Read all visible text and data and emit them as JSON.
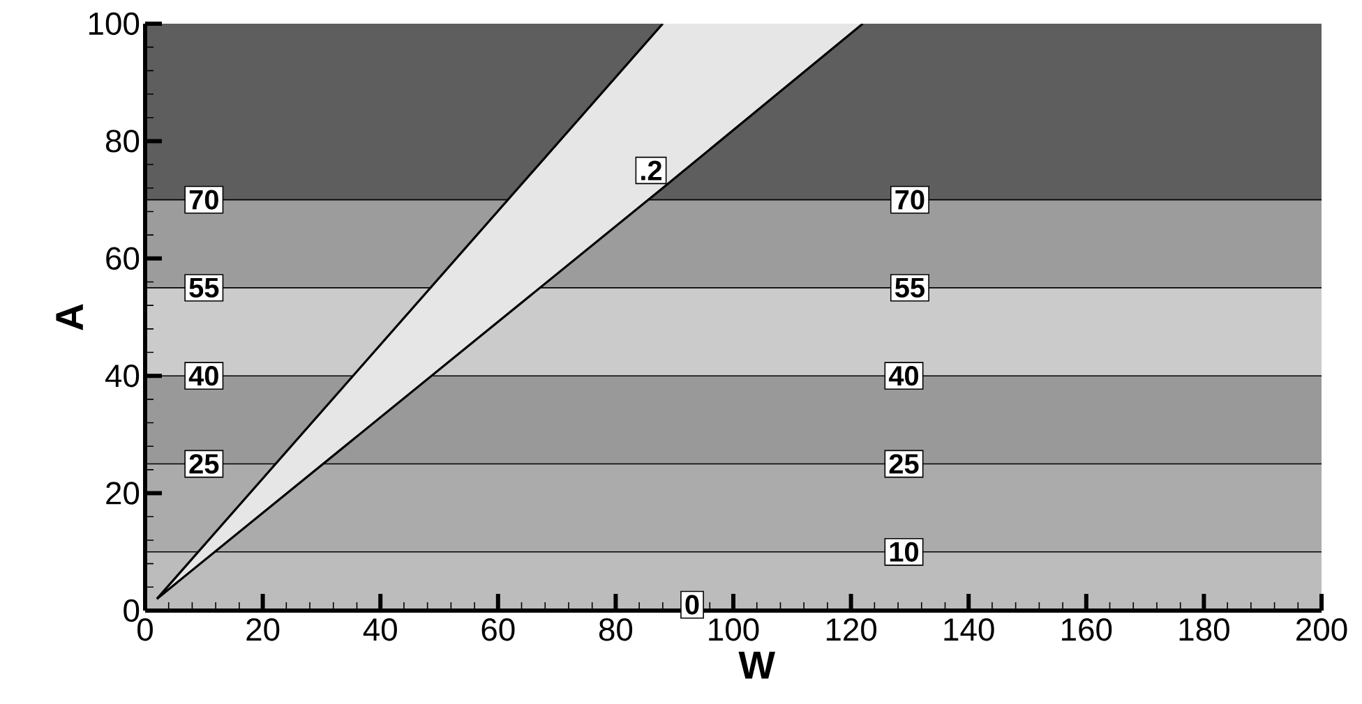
{
  "chart_data": {
    "type": "line",
    "xlabel": "W",
    "ylabel": "A",
    "xlim": [
      0,
      200
    ],
    "xticks": [
      0,
      20,
      40,
      60,
      80,
      100,
      120,
      140,
      160,
      180,
      200
    ],
    "ylim": [
      0,
      100
    ],
    "yticks": [
      0,
      20,
      40,
      60,
      80,
      100
    ],
    "grid": false,
    "marker": "none",
    "line_style": "solid",
    "series": [
      {
        "color": "#000000",
        "x": [
          2,
          88
        ],
        "values": [
          2,
          100
        ]
      },
      {
        "color": "#000000",
        "x": [
          2,
          88,
          122
        ],
        "values": [
          2,
          72,
          100
        ],
        "lower": [
          2,
          72,
          100
        ],
        "upper": [
          2,
          100,
          100
        ]
      }
    ],
    "bands": [
      {
        "axis": "y",
        "from": 0,
        "to": 10,
        "color": "#bcbcbc"
      },
      {
        "axis": "y",
        "from": 10,
        "to": 25,
        "color": "#ababab"
      },
      {
        "axis": "y",
        "from": 25,
        "to": 40,
        "color": "#999999"
      },
      {
        "axis": "y",
        "from": 40,
        "to": 55,
        "color": "#cbcbcb"
      },
      {
        "axis": "y",
        "from": 55,
        "to": 70,
        "color": "#9c9c9c"
      },
      {
        "axis": "y",
        "from": 70,
        "to": 100,
        "color": "#5e5e5e"
      }
    ],
    "ref_lines": [
      {
        "axis": "y",
        "value": 10,
        "color": "#000000"
      },
      {
        "axis": "y",
        "value": 25,
        "color": "#000000"
      },
      {
        "axis": "y",
        "value": 40,
        "color": "#000000"
      },
      {
        "axis": "y",
        "value": 55,
        "color": "#000000"
      },
      {
        "axis": "y",
        "value": 70,
        "color": "#000000"
      }
    ],
    "annotations": [
      {
        "text": "70",
        "x": 10,
        "y": 70
      },
      {
        "text": "55",
        "x": 10,
        "y": 55
      },
      {
        "text": "40",
        "x": 10,
        "y": 40
      },
      {
        "text": "25",
        "x": 10,
        "y": 25
      },
      {
        "text": ".2",
        "x": 86,
        "y": 75
      },
      {
        "text": "0",
        "x": 93,
        "y": 1
      },
      {
        "text": "70",
        "x": 130,
        "y": 70
      },
      {
        "text": "55",
        "x": 130,
        "y": 55
      },
      {
        "text": "40",
        "x": 129,
        "y": 40
      },
      {
        "text": "25",
        "x": 129,
        "y": 25
      },
      {
        "text": "10",
        "x": 129,
        "y": 10
      }
    ]
  }
}
